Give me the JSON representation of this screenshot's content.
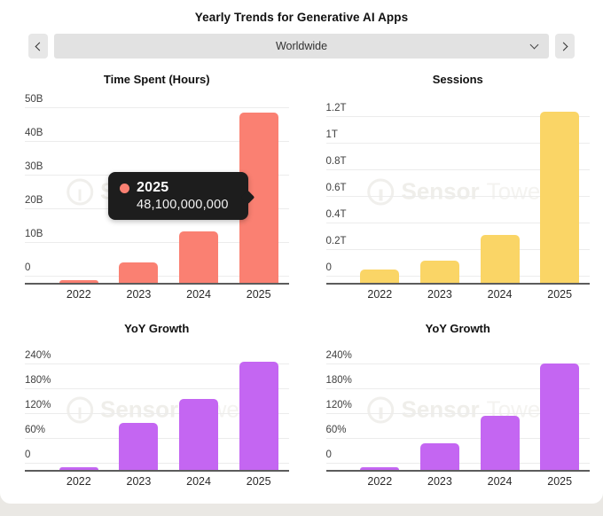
{
  "header": {
    "title": "Yearly Trends for Generative AI Apps"
  },
  "selector": {
    "value": "Worldwide",
    "icons": {
      "prev": "chevron-left",
      "next": "chevron-right",
      "dropdown": "chevron-down"
    }
  },
  "watermark": {
    "brand_bold": "Sensor",
    "brand_light": "Tower",
    "icon": "sensor-tower-logo"
  },
  "tooltip": {
    "series_year": "2025",
    "value": "48,100,000,000",
    "dot_color": "#fa8072",
    "bg": "#1d1d1d"
  },
  "colors": {
    "time_spent_bar": "#fa8072",
    "sessions_bar": "#fad566",
    "yoy_bar": "#c466f2",
    "axis": "#5c5c5c",
    "gridline": "#ececec",
    "page_strip": "#eae8e4",
    "card_bg": "#ffffff"
  },
  "chart_data": [
    {
      "type": "bar",
      "title": "Time Spent (Hours)",
      "categories": [
        "2022",
        "2023",
        "2024",
        "2025"
      ],
      "values": [
        0.9,
        3.8,
        12.8,
        48.1
      ],
      "unit": "billions of hours",
      "yticks": [
        "0",
        "10B",
        "20B",
        "30B",
        "40B",
        "50B"
      ],
      "ylim": [
        0,
        50
      ],
      "grid": true,
      "legend": "none",
      "color": "#fa8072"
    },
    {
      "type": "bar",
      "title": "Sessions",
      "categories": [
        "2022",
        "2023",
        "2024",
        "2025"
      ],
      "values": [
        0.04,
        0.11,
        0.3,
        1.23
      ],
      "unit": "trillions of sessions",
      "yticks": [
        "0",
        "0.2T",
        "0.4T",
        "0.6T",
        "0.8T",
        "1T",
        "1.2T"
      ],
      "ylim": [
        0,
        1.2
      ],
      "grid": true,
      "legend": "none",
      "color": "#fad566"
    },
    {
      "type": "bar",
      "title": "YoY Growth",
      "categories": [
        "2022",
        "2023",
        "2024",
        "2025"
      ],
      "values": [
        2,
        95,
        152,
        243
      ],
      "unit": "percent (time spent)",
      "yticks": [
        "0",
        "60%",
        "120%",
        "180%",
        "240%"
      ],
      "ylim": [
        0,
        240
      ],
      "grid": true,
      "legend": "none",
      "color": "#c466f2"
    },
    {
      "type": "bar",
      "title": "YoY Growth",
      "categories": [
        "2022",
        "2023",
        "2024",
        "2025"
      ],
      "values": [
        2,
        46,
        112,
        237
      ],
      "unit": "percent (sessions)",
      "yticks": [
        "0",
        "60%",
        "120%",
        "180%",
        "240%"
      ],
      "ylim": [
        0,
        240
      ],
      "grid": true,
      "legend": "none",
      "color": "#c466f2"
    }
  ]
}
